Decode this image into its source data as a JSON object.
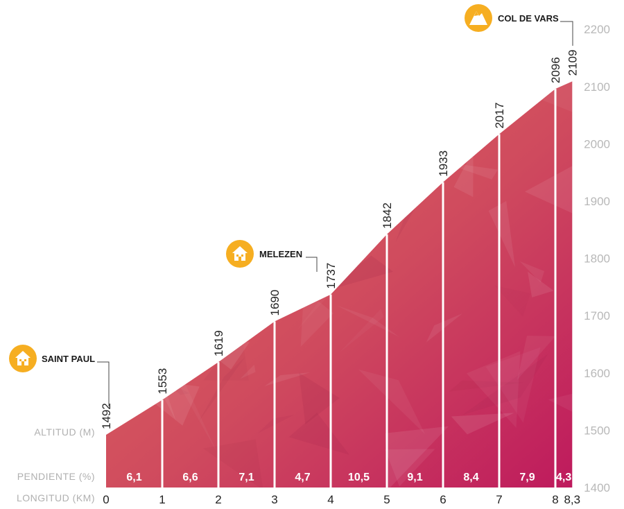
{
  "chart_data": {
    "type": "area",
    "title": "",
    "x": [
      0,
      1,
      2,
      3,
      4,
      5,
      6,
      7,
      8,
      8.3
    ],
    "x_labels": [
      "0",
      "1",
      "2",
      "3",
      "4",
      "5",
      "6",
      "7",
      "8",
      "8,3"
    ],
    "altitudes": [
      1492,
      1553,
      1619,
      1690,
      1737,
      1842,
      1933,
      2017,
      2096,
      2109
    ],
    "altitude_labels": [
      "1492",
      "1553",
      "1619",
      "1690",
      "1737",
      "1842",
      "1933",
      "2017",
      "2096",
      "2109"
    ],
    "gradients": [
      "6,1",
      "6,6",
      "7,1",
      "4,7",
      "10,5",
      "9,1",
      "8,4",
      "7,9",
      "4,3"
    ],
    "ylim": [
      1400,
      2200
    ],
    "yticks": [
      "1400",
      "1500",
      "1600",
      "1700",
      "1800",
      "1900",
      "2000",
      "2100",
      "2200"
    ],
    "row_labels": {
      "altitude": "ALTITUD (M)",
      "gradient": "PENDIENTE (%)",
      "length": "LONGITUD (KM)"
    },
    "places": [
      {
        "name": "SAINT PAUL",
        "icon": "house-icon",
        "km": 0
      },
      {
        "name": "MELEZEN",
        "icon": "house-icon",
        "km": 4
      },
      {
        "name": "COL DE VARS",
        "icon": "mountain-icon",
        "km": 8.3
      }
    ],
    "colors": {
      "fill_left": "#e2705e",
      "fill_right": "#be1a5d",
      "icon": "#f6ae21",
      "ytick": "#b8b8b8"
    }
  }
}
